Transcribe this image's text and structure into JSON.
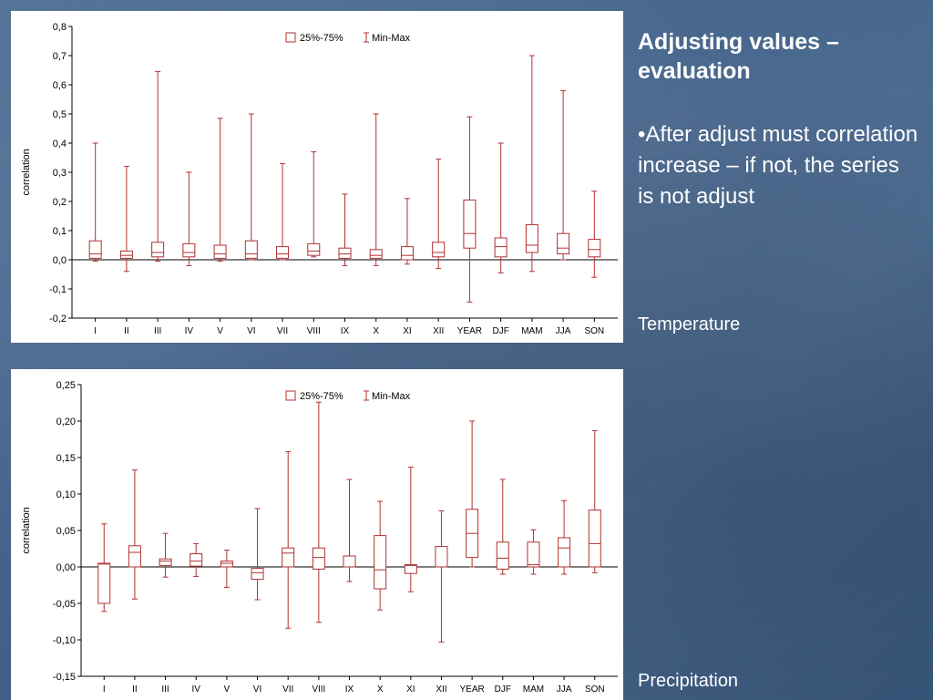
{
  "slide": {
    "title": "Adjusting values – evaluation",
    "bullet": "•After adjust must correlation increase – if not, the series is not adjust",
    "label_temperature": "Temperature",
    "label_precipitation": "Precipitation"
  },
  "colors": {
    "box": "#b03030",
    "axis": "#000000",
    "background": "#4a6a90"
  },
  "chart_data": [
    {
      "type": "boxplot",
      "ylabel": "correlation",
      "ylim": [
        -0.2,
        0.8
      ],
      "yticks": [
        "-0,2",
        "-0,1",
        "0,0",
        "0,1",
        "0,2",
        "0,3",
        "0,4",
        "0,5",
        "0,6",
        "0,7",
        "0,8"
      ],
      "legend": {
        "box": "25%-75%",
        "whisker": "Min-Max",
        "position": "top-center"
      },
      "categories": [
        "I",
        "II",
        "III",
        "IV",
        "V",
        "VI",
        "VII",
        "VIII",
        "IX",
        "X",
        "XI",
        "XII",
        "YEAR",
        "DJF",
        "MAM",
        "JJA",
        "SON"
      ],
      "min": [
        -0.005,
        -0.04,
        -0.005,
        -0.02,
        -0.005,
        0.0,
        0.0,
        0.01,
        -0.02,
        -0.02,
        -0.015,
        -0.03,
        -0.145,
        -0.045,
        -0.04,
        0.0,
        -0.06
      ],
      "q1": [
        0.005,
        0.005,
        0.01,
        0.01,
        0.005,
        0.005,
        0.005,
        0.015,
        0.005,
        0.005,
        0.0,
        0.01,
        0.04,
        0.01,
        0.025,
        0.02,
        0.01
      ],
      "median": [
        0.02,
        0.015,
        0.025,
        0.025,
        0.02,
        0.02,
        0.02,
        0.03,
        0.02,
        0.015,
        0.015,
        0.025,
        0.09,
        0.045,
        0.05,
        0.04,
        0.035
      ],
      "q3": [
        0.065,
        0.03,
        0.06,
        0.055,
        0.05,
        0.065,
        0.045,
        0.055,
        0.04,
        0.035,
        0.045,
        0.06,
        0.205,
        0.075,
        0.12,
        0.09,
        0.07
      ],
      "max": [
        0.4,
        0.32,
        0.645,
        0.3,
        0.485,
        0.5,
        0.33,
        0.37,
        0.225,
        0.5,
        0.21,
        0.345,
        0.49,
        0.4,
        0.7,
        0.58,
        0.235
      ]
    },
    {
      "type": "boxplot",
      "ylabel": "correlation",
      "ylim": [
        -0.15,
        0.25
      ],
      "yticks": [
        "-0,15",
        "-0,10",
        "-0,05",
        "0,00",
        "0,05",
        "0,10",
        "0,15",
        "0,20",
        "0,25"
      ],
      "legend": {
        "box": "25%-75%",
        "whisker": "Min-Max",
        "position": "top-center"
      },
      "categories": [
        "I",
        "II",
        "III",
        "IV",
        "V",
        "VI",
        "VII",
        "VIII",
        "IX",
        "X",
        "XI",
        "XII",
        "YEAR",
        "DJF",
        "MAM",
        "JJA",
        "SON"
      ],
      "min": [
        -0.061,
        -0.044,
        -0.014,
        -0.013,
        -0.028,
        -0.045,
        -0.084,
        -0.076,
        -0.02,
        -0.059,
        -0.034,
        -0.103,
        0.0,
        -0.01,
        -0.01,
        -0.01,
        -0.008
      ],
      "q1": [
        -0.05,
        0.0,
        0.002,
        0.001,
        0.0,
        -0.017,
        0.0,
        -0.003,
        0.0,
        -0.03,
        -0.009,
        0.0,
        0.013,
        -0.003,
        0.0,
        0.0,
        0.0
      ],
      "median": [
        0.004,
        0.02,
        0.008,
        0.008,
        0.005,
        -0.008,
        0.019,
        0.013,
        0.0,
        -0.004,
        0.002,
        0.0,
        0.046,
        0.012,
        0.003,
        0.026,
        0.032
      ],
      "q3": [
        0.005,
        0.029,
        0.011,
        0.018,
        0.008,
        -0.002,
        0.026,
        0.026,
        0.015,
        0.043,
        0.003,
        0.028,
        0.079,
        0.034,
        0.034,
        0.04,
        0.078
      ],
      "max": [
        0.059,
        0.133,
        0.046,
        0.032,
        0.023,
        0.08,
        0.158,
        0.226,
        0.12,
        0.09,
        0.137,
        0.077,
        0.2,
        0.12,
        0.051,
        0.091,
        0.187
      ]
    }
  ]
}
